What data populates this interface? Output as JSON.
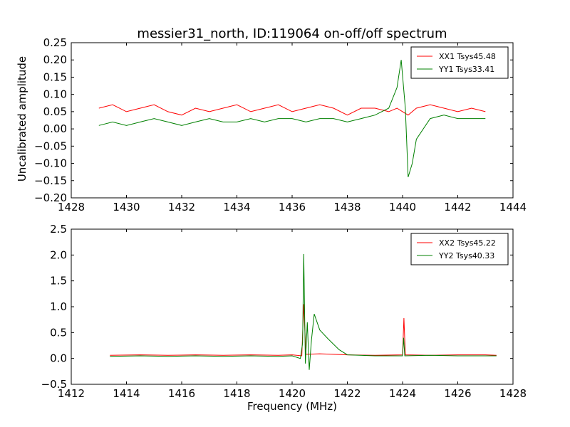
{
  "figure": {
    "title": "messier31_north, ID:119064 on-off/off spectrum"
  },
  "chart_data": [
    {
      "type": "line",
      "title": "messier31_north, ID:119064 on-off/off spectrum",
      "xlabel": "",
      "ylabel": "Uncalibrated amplitude",
      "xlim": [
        1428,
        1444
      ],
      "ylim": [
        -0.2,
        0.25
      ],
      "xticks": [
        1428,
        1430,
        1432,
        1434,
        1436,
        1438,
        1440,
        1442,
        1444
      ],
      "yticks": [
        -0.2,
        -0.15,
        -0.1,
        -0.05,
        0.0,
        0.05,
        0.1,
        0.15,
        0.2,
        0.25
      ],
      "xtick_labels": [
        "1428",
        "1430",
        "1432",
        "1434",
        "1436",
        "1438",
        "1440",
        "1442",
        "1444"
      ],
      "ytick_labels": [
        "−0.20",
        "−0.15",
        "−0.10",
        "−0.05",
        "0.00",
        "0.05",
        "0.10",
        "0.15",
        "0.20",
        "0.25"
      ],
      "legend_position": "top-right",
      "series": [
        {
          "name": "XX1 Tsys45.48",
          "color": "#ff0000",
          "x": [
            1429.0,
            1429.5,
            1430.0,
            1430.5,
            1431.0,
            1431.5,
            1432.0,
            1432.5,
            1433.0,
            1433.5,
            1434.0,
            1434.5,
            1435.0,
            1435.5,
            1436.0,
            1436.5,
            1437.0,
            1437.5,
            1438.0,
            1438.5,
            1439.0,
            1439.5,
            1439.8,
            1440.0,
            1440.2,
            1440.5,
            1441.0,
            1441.5,
            1442.0,
            1442.5,
            1443.0
          ],
          "y": [
            0.06,
            0.07,
            0.05,
            0.06,
            0.07,
            0.05,
            0.04,
            0.06,
            0.05,
            0.06,
            0.07,
            0.05,
            0.06,
            0.07,
            0.05,
            0.06,
            0.07,
            0.06,
            0.04,
            0.06,
            0.06,
            0.05,
            0.06,
            0.05,
            0.04,
            0.06,
            0.07,
            0.06,
            0.05,
            0.06,
            0.05
          ]
        },
        {
          "name": "YY1 Tsys33.41",
          "color": "#008000",
          "x": [
            1429.0,
            1429.5,
            1430.0,
            1430.5,
            1431.0,
            1431.5,
            1432.0,
            1432.5,
            1433.0,
            1433.5,
            1434.0,
            1434.5,
            1435.0,
            1435.5,
            1436.0,
            1436.5,
            1437.0,
            1437.5,
            1438.0,
            1438.5,
            1439.0,
            1439.5,
            1439.8,
            1439.95,
            1440.1,
            1440.2,
            1440.35,
            1440.5,
            1441.0,
            1441.5,
            1442.0,
            1442.5,
            1443.0
          ],
          "y": [
            0.01,
            0.02,
            0.01,
            0.02,
            0.03,
            0.02,
            0.01,
            0.02,
            0.03,
            0.02,
            0.02,
            0.03,
            0.02,
            0.03,
            0.03,
            0.02,
            0.03,
            0.03,
            0.02,
            0.03,
            0.04,
            0.06,
            0.12,
            0.2,
            0.06,
            -0.14,
            -0.1,
            -0.03,
            0.03,
            0.04,
            0.03,
            0.03,
            0.03
          ]
        }
      ]
    },
    {
      "type": "line",
      "title": "",
      "xlabel": "Frequency (MHz)",
      "ylabel": "",
      "xlim": [
        1412,
        1428
      ],
      "ylim": [
        -0.5,
        2.5
      ],
      "xticks": [
        1412,
        1414,
        1416,
        1418,
        1420,
        1422,
        1424,
        1426,
        1428
      ],
      "yticks": [
        -0.5,
        0.0,
        0.5,
        1.0,
        1.5,
        2.0,
        2.5
      ],
      "xtick_labels": [
        "1412",
        "1414",
        "1416",
        "1418",
        "1420",
        "1422",
        "1424",
        "1426",
        "1428"
      ],
      "ytick_labels": [
        "−0.5",
        "0.0",
        "0.5",
        "1.0",
        "1.5",
        "2.0",
        "2.5"
      ],
      "legend_position": "top-right",
      "series": [
        {
          "name": "XX2 Tsys45.22",
          "color": "#ff0000",
          "x": [
            1413.4,
            1414.5,
            1415.5,
            1416.5,
            1417.5,
            1418.5,
            1419.5,
            1420.0,
            1420.35,
            1420.42,
            1420.5,
            1421.0,
            1421.5,
            1422.0,
            1423.0,
            1424.0,
            1424.05,
            1424.1,
            1425.0,
            1426.0,
            1427.0,
            1427.4
          ],
          "y": [
            0.06,
            0.07,
            0.06,
            0.07,
            0.06,
            0.07,
            0.06,
            0.07,
            0.05,
            1.05,
            0.08,
            0.09,
            0.08,
            0.07,
            0.06,
            0.07,
            0.78,
            0.07,
            0.06,
            0.07,
            0.07,
            0.06
          ]
        },
        {
          "name": "YY2 Tsys40.33",
          "color": "#008000",
          "x": [
            1413.4,
            1414.5,
            1415.5,
            1416.5,
            1417.5,
            1418.5,
            1419.5,
            1420.0,
            1420.3,
            1420.38,
            1420.42,
            1420.48,
            1420.55,
            1420.62,
            1420.7,
            1420.8,
            1421.0,
            1421.3,
            1421.7,
            1422.0,
            1423.0,
            1424.0,
            1424.04,
            1424.08,
            1425.0,
            1426.0,
            1427.0,
            1427.4
          ],
          "y": [
            0.04,
            0.05,
            0.04,
            0.05,
            0.04,
            0.05,
            0.04,
            0.05,
            0.0,
            0.3,
            2.02,
            -0.1,
            0.7,
            -0.22,
            0.35,
            0.86,
            0.55,
            0.38,
            0.17,
            0.07,
            0.05,
            0.05,
            0.4,
            0.05,
            0.06,
            0.05,
            0.05,
            0.05
          ]
        }
      ]
    }
  ]
}
